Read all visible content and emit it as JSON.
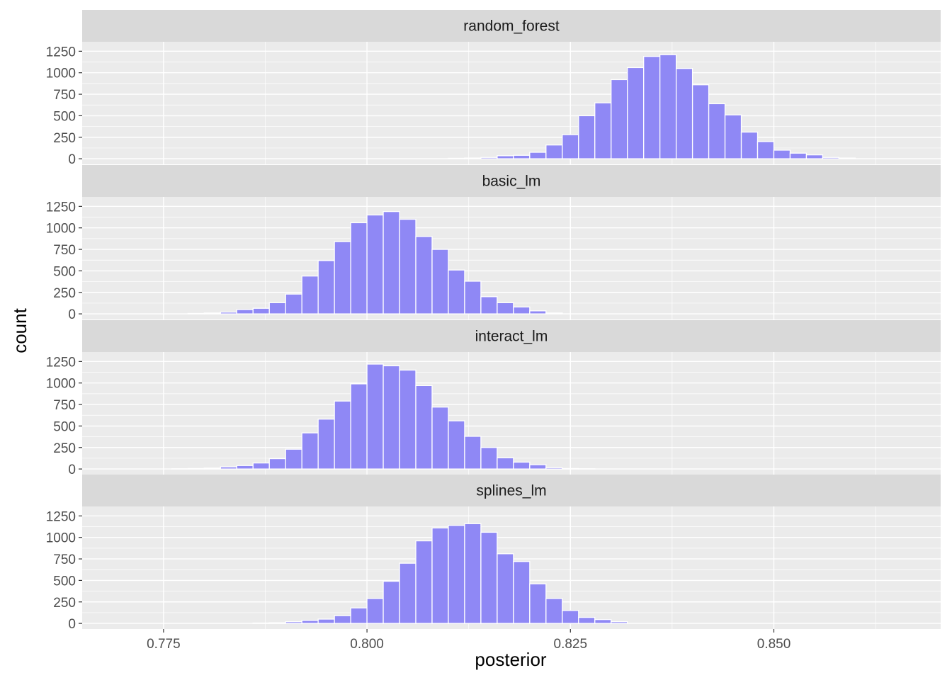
{
  "chart_data": {
    "type": "bar",
    "xlabel": "posterior",
    "ylabel": "count",
    "xlim": [
      0.765,
      0.8705
    ],
    "ylim": [
      -65,
      1360
    ],
    "x_ticks": [
      0.775,
      0.8,
      0.825,
      0.85
    ],
    "x_tick_labels": [
      "0.775",
      "0.800",
      "0.825",
      "0.850"
    ],
    "y_ticks": [
      0,
      250,
      500,
      750,
      1000,
      1250
    ],
    "y_tick_labels": [
      "0",
      "250",
      "500",
      "750",
      "1000",
      "1250"
    ],
    "bin_width": 0.002,
    "grid": true,
    "bar_color": "#8f88f5",
    "bar_outline": "#ffffff",
    "panel_background": "#ebebeb",
    "strip_background": "#d9d9d9",
    "panels": [
      {
        "name": "random_forest",
        "x": [
          0.811,
          0.813,
          0.815,
          0.817,
          0.819,
          0.821,
          0.823,
          0.825,
          0.827,
          0.829,
          0.831,
          0.833,
          0.835,
          0.837,
          0.839,
          0.841,
          0.843,
          0.845,
          0.847,
          0.849,
          0.851,
          0.853,
          0.855,
          0.857,
          0.859
        ],
        "values": [
          5,
          8,
          15,
          35,
          40,
          75,
          160,
          280,
          500,
          650,
          920,
          1060,
          1190,
          1210,
          1050,
          860,
          640,
          510,
          310,
          200,
          100,
          65,
          45,
          15,
          8
        ]
      },
      {
        "name": "basic_lm",
        "x": [
          0.779,
          0.781,
          0.783,
          0.785,
          0.787,
          0.789,
          0.791,
          0.793,
          0.795,
          0.797,
          0.799,
          0.801,
          0.803,
          0.805,
          0.807,
          0.809,
          0.811,
          0.813,
          0.815,
          0.817,
          0.819,
          0.821,
          0.823
        ],
        "values": [
          5,
          10,
          20,
          50,
          65,
          130,
          230,
          440,
          620,
          840,
          1060,
          1150,
          1190,
          1100,
          900,
          750,
          510,
          380,
          200,
          130,
          80,
          35,
          10
        ]
      },
      {
        "name": "interact_lm",
        "x": [
          0.777,
          0.779,
          0.781,
          0.783,
          0.785,
          0.787,
          0.789,
          0.791,
          0.793,
          0.795,
          0.797,
          0.799,
          0.801,
          0.803,
          0.805,
          0.807,
          0.809,
          0.811,
          0.813,
          0.815,
          0.817,
          0.819,
          0.821,
          0.823,
          0.825,
          0.827
        ],
        "values": [
          3,
          5,
          10,
          25,
          40,
          70,
          120,
          230,
          420,
          580,
          790,
          990,
          1220,
          1200,
          1150,
          970,
          720,
          560,
          380,
          250,
          130,
          80,
          50,
          15,
          5,
          3
        ]
      },
      {
        "name": "splines_lm",
        "x": [
          0.787,
          0.789,
          0.791,
          0.793,
          0.795,
          0.797,
          0.799,
          0.801,
          0.803,
          0.805,
          0.807,
          0.809,
          0.811,
          0.813,
          0.815,
          0.817,
          0.819,
          0.821,
          0.823,
          0.825,
          0.827,
          0.829,
          0.831
        ],
        "values": [
          5,
          8,
          20,
          35,
          50,
          90,
          180,
          290,
          490,
          700,
          960,
          1110,
          1140,
          1160,
          1060,
          810,
          720,
          460,
          290,
          150,
          70,
          45,
          20
        ]
      }
    ]
  }
}
